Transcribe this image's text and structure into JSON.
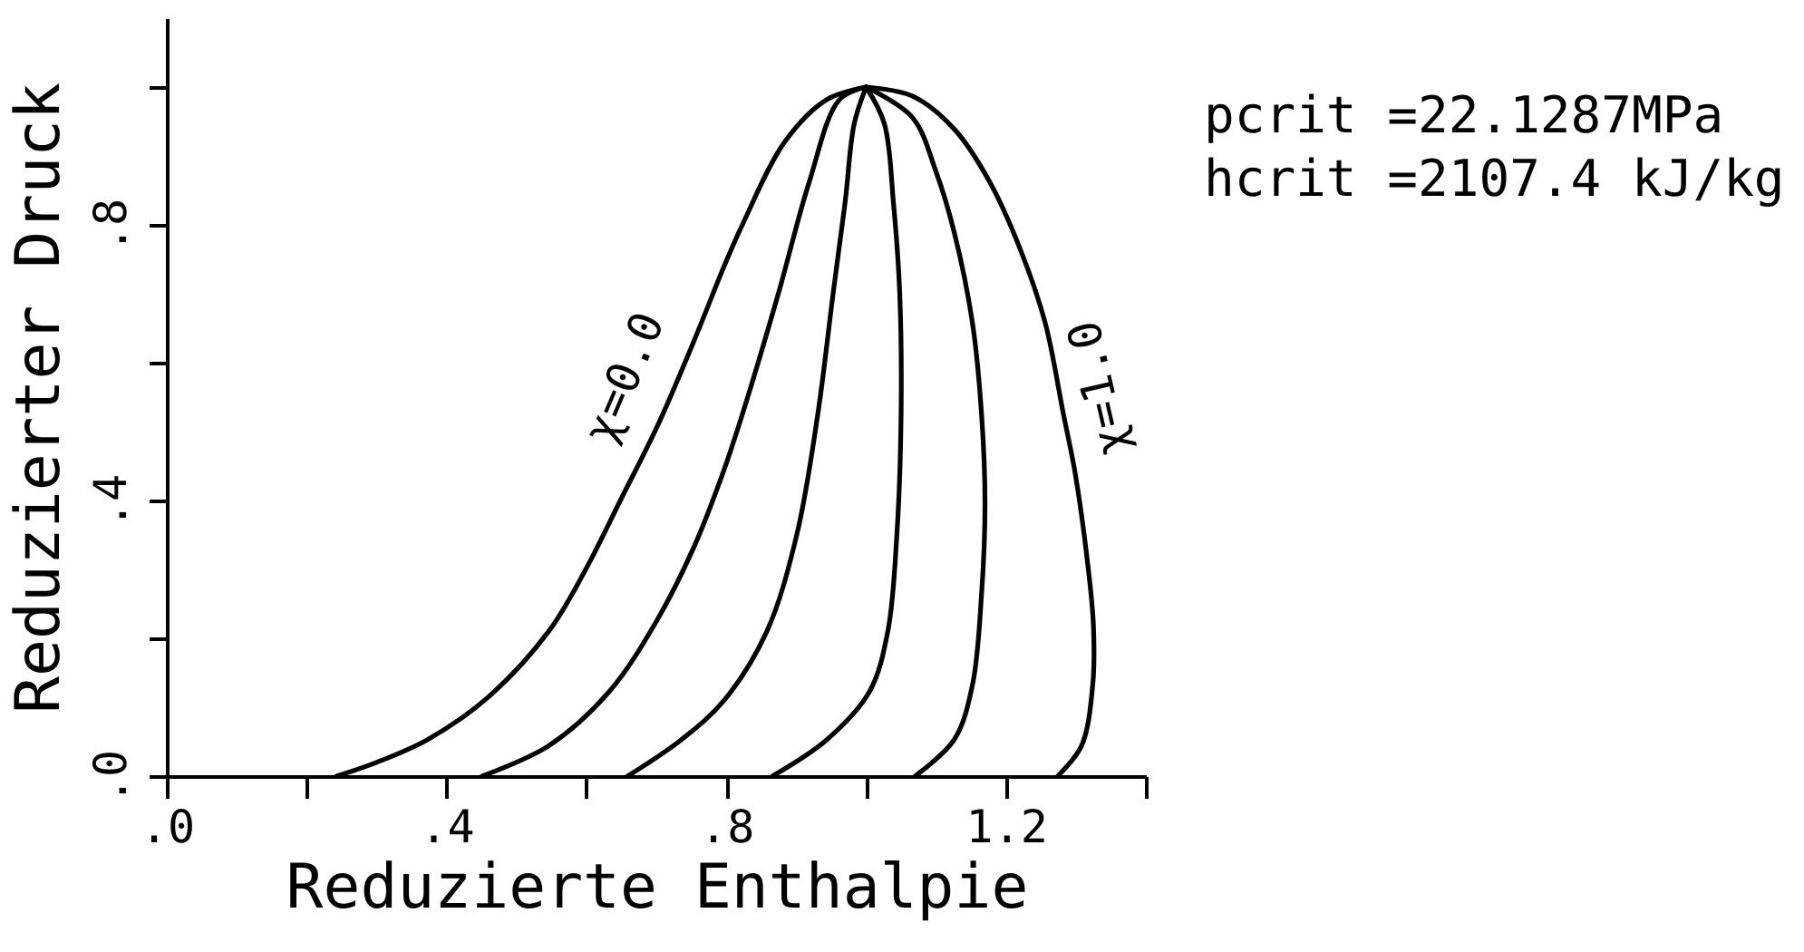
{
  "chart_data": {
    "type": "line",
    "xlabel": "Reduzierte Enthalpie",
    "ylabel": "Reduzierter Druck",
    "annotations": [
      "pcrit =22.1287MPa",
      "hcrit =2107.4 kJ/kg"
    ],
    "xlim": [
      0,
      1.4
    ],
    "ylim": [
      0,
      1.1
    ],
    "xticks": [
      {
        "value": 0,
        "label": ".0"
      },
      {
        "value": 0.2,
        "label": null
      },
      {
        "value": 0.4,
        "label": ".4"
      },
      {
        "value": 0.6,
        "label": null
      },
      {
        "value": 0.8,
        "label": ".8"
      },
      {
        "value": 1.0,
        "label": null
      },
      1.2,
      {
        "value": 1.4,
        "label": null
      }
    ],
    "yticks": [
      {
        "value": 0,
        "label": ".0"
      },
      {
        "value": 0.2,
        "label": null
      },
      {
        "value": 0.4,
        "label": ".4"
      },
      {
        "value": 0.6,
        "label": null
      },
      {
        "value": 0.8,
        "label": ".8"
      },
      {
        "value": 1.0,
        "label": null
      }
    ],
    "line_style": "solid",
    "series": [
      {
        "name": "χ=0.0",
        "color": "#000000",
        "x": [
          0.243,
          0.3,
          0.373,
          0.46,
          0.546,
          0.598,
          0.65,
          0.702,
          0.754,
          0.797,
          0.823,
          0.884,
          0.944,
          1.0
        ],
        "values": [
          0,
          0.02,
          0.053,
          0.115,
          0.21,
          0.298,
          0.403,
          0.509,
          0.632,
          0.74,
          0.8,
          0.921,
          0.982,
          1.0
        ]
      },
      {
        "color": "#000000",
        "x": [
          0.451,
          0.546,
          0.633,
          0.702,
          0.754,
          0.797,
          0.823,
          0.875,
          0.918,
          0.962,
          1.0
        ],
        "values": [
          0,
          0.044,
          0.123,
          0.228,
          0.333,
          0.445,
          0.525,
          0.702,
          0.86,
          0.982,
          1.0
        ]
      },
      {
        "color": "#000000",
        "x": [
          0.659,
          0.736,
          0.797,
          0.858,
          0.901,
          0.931,
          0.953,
          0.97,
          0.983,
          1.0
        ],
        "values": [
          0,
          0.053,
          0.11,
          0.21,
          0.351,
          0.526,
          0.702,
          0.833,
          0.947,
          1.0
        ]
      },
      {
        "color": "#000000",
        "x": [
          0.866,
          0.944,
          1.005,
          1.031,
          1.044,
          1.05,
          1.048,
          1.039,
          1.026,
          1.0
        ],
        "values": [
          0,
          0.053,
          0.123,
          0.21,
          0.351,
          0.526,
          0.702,
          0.833,
          0.947,
          1.0
        ]
      },
      {
        "color": "#000000",
        "x": [
          1.07,
          1.126,
          1.152,
          1.165,
          1.17,
          1.165,
          1.152,
          1.126,
          1.1,
          1.066,
          1.0
        ],
        "values": [
          0,
          0.053,
          0.132,
          0.263,
          0.395,
          0.526,
          0.658,
          0.789,
          0.877,
          0.956,
          1.0
        ]
      },
      {
        "name": "χ=1.0",
        "color": "#000000",
        "x": [
          1.274,
          1.308,
          1.324,
          1.325,
          1.317,
          1.299,
          1.282,
          1.256,
          1.221,
          1.178,
          1.126,
          1.066,
          1.0
        ],
        "values": [
          0,
          0.044,
          0.132,
          0.219,
          0.307,
          0.439,
          0.526,
          0.658,
          0.763,
          0.86,
          0.939,
          0.987,
          1.0
        ]
      }
    ]
  }
}
